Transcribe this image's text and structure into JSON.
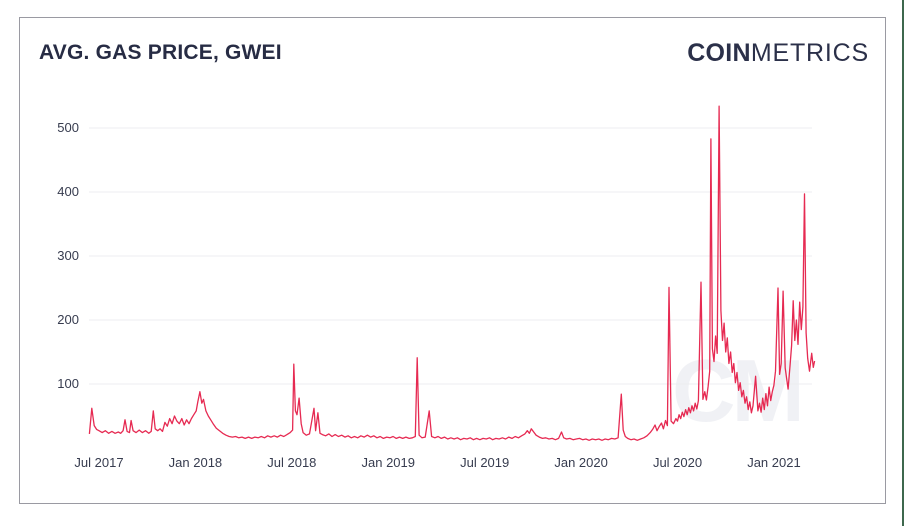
{
  "header": {
    "title": "AVG. GAS PRICE, GWEI",
    "brand": {
      "bold": "COIN",
      "light": "METRICS"
    }
  },
  "watermark": "CM",
  "chart_data": {
    "type": "line",
    "title": "AVG. GAS PRICE, GWEI",
    "unit": "gwei",
    "line_color": "#e62a52",
    "grid_color": "#ededf0",
    "legend": "none",
    "grid": "horizontal-only",
    "x_axis": {
      "tick_labels": [
        "Jul 2017",
        "Jan 2018",
        "Jul 2018",
        "Jan 2019",
        "Jul 2019",
        "Jan 2020",
        "Jul 2020",
        "Jan 2021"
      ],
      "tick_months": [
        0,
        6,
        12,
        18,
        24,
        30,
        36,
        42
      ]
    },
    "y_axis": {
      "ticks": [
        100,
        200,
        300,
        400,
        500
      ],
      "min": 0,
      "display_max": 550
    },
    "series": [
      {
        "name": "Avg. Gas Price (GWEI)",
        "x_unit": "months_since_Jul_2017",
        "points": [
          [
            -0.6,
            22
          ],
          [
            -0.45,
            62
          ],
          [
            -0.3,
            35
          ],
          [
            -0.15,
            29
          ],
          [
            0,
            27
          ],
          [
            0.2,
            24
          ],
          [
            0.4,
            27
          ],
          [
            0.6,
            23
          ],
          [
            0.8,
            26
          ],
          [
            1.0,
            23
          ],
          [
            1.2,
            25
          ],
          [
            1.35,
            23
          ],
          [
            1.5,
            27
          ],
          [
            1.62,
            44
          ],
          [
            1.75,
            26
          ],
          [
            1.9,
            24
          ],
          [
            2.0,
            43
          ],
          [
            2.12,
            27
          ],
          [
            2.3,
            24
          ],
          [
            2.5,
            28
          ],
          [
            2.7,
            24
          ],
          [
            2.9,
            27
          ],
          [
            3.1,
            23
          ],
          [
            3.25,
            26
          ],
          [
            3.38,
            58
          ],
          [
            3.5,
            30
          ],
          [
            3.65,
            27
          ],
          [
            3.8,
            30
          ],
          [
            3.95,
            26
          ],
          [
            4.1,
            40
          ],
          [
            4.25,
            34
          ],
          [
            4.4,
            46
          ],
          [
            4.55,
            38
          ],
          [
            4.7,
            50
          ],
          [
            4.85,
            42
          ],
          [
            5.0,
            38
          ],
          [
            5.15,
            46
          ],
          [
            5.3,
            36
          ],
          [
            5.45,
            44
          ],
          [
            5.6,
            38
          ],
          [
            5.75,
            46
          ],
          [
            5.9,
            52
          ],
          [
            6.05,
            58
          ],
          [
            6.15,
            72
          ],
          [
            6.28,
            88
          ],
          [
            6.4,
            70
          ],
          [
            6.5,
            76
          ],
          [
            6.65,
            58
          ],
          [
            6.8,
            50
          ],
          [
            6.95,
            44
          ],
          [
            7.1,
            38
          ],
          [
            7.3,
            31
          ],
          [
            7.5,
            27
          ],
          [
            7.7,
            23
          ],
          [
            7.9,
            20
          ],
          [
            8.1,
            18
          ],
          [
            8.3,
            17
          ],
          [
            8.5,
            18
          ],
          [
            8.7,
            16
          ],
          [
            8.9,
            17
          ],
          [
            9.1,
            15
          ],
          [
            9.3,
            17
          ],
          [
            9.5,
            15
          ],
          [
            9.7,
            17
          ],
          [
            9.9,
            16
          ],
          [
            10.1,
            18
          ],
          [
            10.3,
            16
          ],
          [
            10.5,
            19
          ],
          [
            10.7,
            17
          ],
          [
            10.9,
            19
          ],
          [
            11.1,
            17
          ],
          [
            11.3,
            20
          ],
          [
            11.5,
            18
          ],
          [
            11.7,
            21
          ],
          [
            11.9,
            24
          ],
          [
            12.05,
            28
          ],
          [
            12.12,
            131
          ],
          [
            12.22,
            58
          ],
          [
            12.32,
            52
          ],
          [
            12.45,
            78
          ],
          [
            12.58,
            38
          ],
          [
            12.7,
            24
          ],
          [
            12.9,
            20
          ],
          [
            13.1,
            22
          ],
          [
            13.38,
            62
          ],
          [
            13.48,
            27
          ],
          [
            13.62,
            55
          ],
          [
            13.75,
            23
          ],
          [
            13.9,
            21
          ],
          [
            14.1,
            19
          ],
          [
            14.3,
            22
          ],
          [
            14.5,
            18
          ],
          [
            14.7,
            21
          ],
          [
            14.9,
            18
          ],
          [
            15.1,
            20
          ],
          [
            15.3,
            17
          ],
          [
            15.5,
            19
          ],
          [
            15.7,
            16
          ],
          [
            15.9,
            18
          ],
          [
            16.1,
            16
          ],
          [
            16.3,
            19
          ],
          [
            16.5,
            17
          ],
          [
            16.7,
            20
          ],
          [
            16.9,
            17
          ],
          [
            17.1,
            19
          ],
          [
            17.3,
            16
          ],
          [
            17.5,
            18
          ],
          [
            17.7,
            15
          ],
          [
            17.9,
            17
          ],
          [
            18.1,
            16
          ],
          [
            18.3,
            18
          ],
          [
            18.5,
            15
          ],
          [
            18.7,
            17
          ],
          [
            18.9,
            15
          ],
          [
            19.1,
            17
          ],
          [
            19.3,
            15
          ],
          [
            19.5,
            16
          ],
          [
            19.68,
            18
          ],
          [
            19.8,
            141
          ],
          [
            19.92,
            20
          ],
          [
            20.1,
            16
          ],
          [
            20.3,
            17
          ],
          [
            20.55,
            58
          ],
          [
            20.7,
            18
          ],
          [
            20.9,
            16
          ],
          [
            21.1,
            18
          ],
          [
            21.3,
            15
          ],
          [
            21.5,
            17
          ],
          [
            21.7,
            14
          ],
          [
            21.9,
            16
          ],
          [
            22.1,
            14
          ],
          [
            22.3,
            16
          ],
          [
            22.5,
            13
          ],
          [
            22.7,
            15
          ],
          [
            22.9,
            14
          ],
          [
            23.1,
            16
          ],
          [
            23.3,
            13
          ],
          [
            23.5,
            15
          ],
          [
            23.7,
            13
          ],
          [
            23.9,
            15
          ],
          [
            24.1,
            14
          ],
          [
            24.3,
            16
          ],
          [
            24.5,
            13
          ],
          [
            24.7,
            15
          ],
          [
            24.9,
            14
          ],
          [
            25.1,
            16
          ],
          [
            25.3,
            14
          ],
          [
            25.5,
            17
          ],
          [
            25.7,
            15
          ],
          [
            25.9,
            18
          ],
          [
            26.1,
            16
          ],
          [
            26.3,
            19
          ],
          [
            26.5,
            22
          ],
          [
            26.65,
            27
          ],
          [
            26.78,
            23
          ],
          [
            26.9,
            30
          ],
          [
            27.05,
            25
          ],
          [
            27.2,
            20
          ],
          [
            27.4,
            17
          ],
          [
            27.6,
            15
          ],
          [
            27.8,
            16
          ],
          [
            28.0,
            14
          ],
          [
            28.2,
            15
          ],
          [
            28.4,
            13
          ],
          [
            28.6,
            15
          ],
          [
            28.78,
            25
          ],
          [
            28.92,
            16
          ],
          [
            29.1,
            14
          ],
          [
            29.3,
            15
          ],
          [
            29.5,
            13
          ],
          [
            29.7,
            14
          ],
          [
            29.9,
            15
          ],
          [
            30.1,
            13
          ],
          [
            30.3,
            14
          ],
          [
            30.5,
            12
          ],
          [
            30.7,
            14
          ],
          [
            30.9,
            13
          ],
          [
            31.1,
            14
          ],
          [
            31.3,
            12
          ],
          [
            31.5,
            14
          ],
          [
            31.7,
            13
          ],
          [
            31.9,
            15
          ],
          [
            32.1,
            14
          ],
          [
            32.3,
            16
          ],
          [
            32.5,
            84
          ],
          [
            32.62,
            28
          ],
          [
            32.75,
            18
          ],
          [
            32.9,
            15
          ],
          [
            33.1,
            13
          ],
          [
            33.3,
            14
          ],
          [
            33.5,
            12
          ],
          [
            33.7,
            14
          ],
          [
            33.9,
            16
          ],
          [
            34.1,
            19
          ],
          [
            34.3,
            24
          ],
          [
            34.45,
            29
          ],
          [
            34.6,
            36
          ],
          [
            34.72,
            27
          ],
          [
            34.85,
            33
          ],
          [
            35.0,
            39
          ],
          [
            35.12,
            30
          ],
          [
            35.25,
            43
          ],
          [
            35.37,
            35
          ],
          [
            35.47,
            251
          ],
          [
            35.6,
            42
          ],
          [
            35.75,
            38
          ],
          [
            35.9,
            46
          ],
          [
            36.0,
            42
          ],
          [
            36.1,
            52
          ],
          [
            36.2,
            46
          ],
          [
            36.3,
            56
          ],
          [
            36.4,
            49
          ],
          [
            36.5,
            60
          ],
          [
            36.6,
            52
          ],
          [
            36.7,
            63
          ],
          [
            36.8,
            55
          ],
          [
            36.9,
            66
          ],
          [
            37.0,
            58
          ],
          [
            37.1,
            70
          ],
          [
            37.2,
            61
          ],
          [
            37.3,
            74
          ],
          [
            37.46,
            259
          ],
          [
            37.58,
            76
          ],
          [
            37.7,
            88
          ],
          [
            37.8,
            75
          ],
          [
            37.9,
            96
          ],
          [
            38.0,
            120
          ],
          [
            38.08,
            483
          ],
          [
            38.17,
            155
          ],
          [
            38.27,
            135
          ],
          [
            38.37,
            175
          ],
          [
            38.47,
            148
          ],
          [
            38.59,
            534
          ],
          [
            38.7,
            215
          ],
          [
            38.8,
            168
          ],
          [
            38.9,
            195
          ],
          [
            39.0,
            150
          ],
          [
            39.1,
            172
          ],
          [
            39.2,
            132
          ],
          [
            39.3,
            150
          ],
          [
            39.4,
            118
          ],
          [
            39.5,
            132
          ],
          [
            39.6,
            102
          ],
          [
            39.7,
            118
          ],
          [
            39.8,
            90
          ],
          [
            39.9,
            102
          ],
          [
            40.0,
            80
          ],
          [
            40.1,
            90
          ],
          [
            40.2,
            70
          ],
          [
            40.3,
            80
          ],
          [
            40.4,
            60
          ],
          [
            40.5,
            72
          ],
          [
            40.6,
            55
          ],
          [
            40.7,
            66
          ],
          [
            40.86,
            112
          ],
          [
            41.0,
            58
          ],
          [
            41.1,
            70
          ],
          [
            41.2,
            56
          ],
          [
            41.3,
            78
          ],
          [
            41.4,
            60
          ],
          [
            41.5,
            85
          ],
          [
            41.6,
            66
          ],
          [
            41.7,
            95
          ],
          [
            41.8,
            74
          ],
          [
            41.9,
            88
          ],
          [
            42.0,
            98
          ],
          [
            42.1,
            120
          ],
          [
            42.25,
            250
          ],
          [
            42.35,
            115
          ],
          [
            42.45,
            132
          ],
          [
            42.57,
            245
          ],
          [
            42.7,
            125
          ],
          [
            42.88,
            92
          ],
          [
            43.0,
            128
          ],
          [
            43.1,
            160
          ],
          [
            43.2,
            230
          ],
          [
            43.3,
            168
          ],
          [
            43.4,
            200
          ],
          [
            43.5,
            162
          ],
          [
            43.6,
            228
          ],
          [
            43.7,
            185
          ],
          [
            43.8,
            220
          ],
          [
            43.9,
            397
          ],
          [
            44.0,
            180
          ],
          [
            44.1,
            140
          ],
          [
            44.21,
            120
          ],
          [
            44.35,
            148
          ],
          [
            44.45,
            126
          ],
          [
            44.53,
            136
          ]
        ]
      }
    ]
  }
}
